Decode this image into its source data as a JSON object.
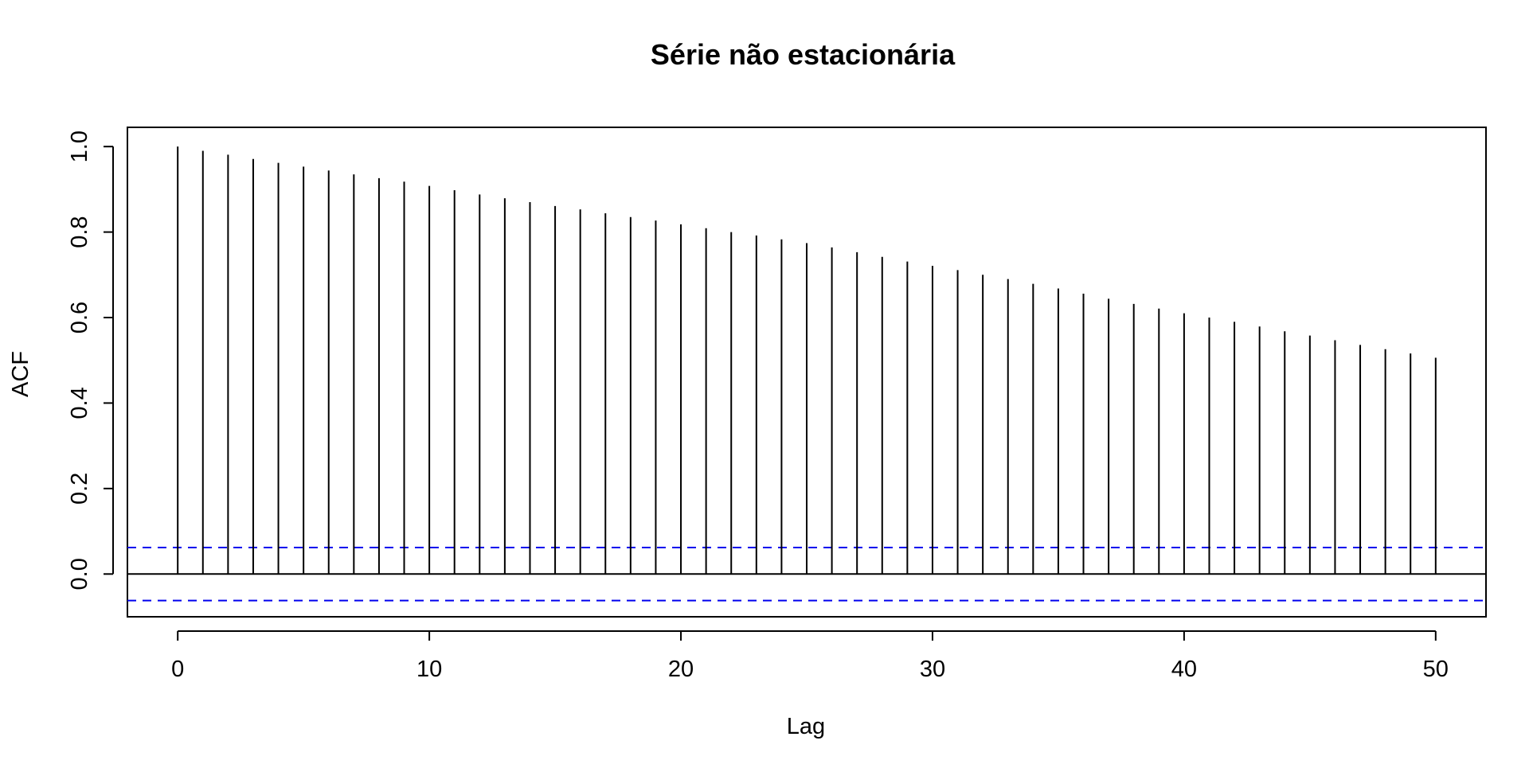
{
  "chart_data": {
    "type": "bar",
    "title": "Série não estacionária",
    "xlabel": "Lag",
    "ylabel": "ACF",
    "xlim": [
      -2,
      52
    ],
    "ylim": [
      -0.1,
      1.045
    ],
    "x_ticks": [
      0,
      10,
      20,
      30,
      40,
      50
    ],
    "y_ticks": [
      0.0,
      0.2,
      0.4,
      0.6,
      0.8,
      1.0
    ],
    "x_tick_labels": [
      "0",
      "10",
      "20",
      "30",
      "40",
      "50"
    ],
    "y_tick_labels": [
      "0.0",
      "0.2",
      "0.4",
      "0.6",
      "0.8",
      "1.0"
    ],
    "lags": [
      0,
      1,
      2,
      3,
      4,
      5,
      6,
      7,
      8,
      9,
      10,
      11,
      12,
      13,
      14,
      15,
      16,
      17,
      18,
      19,
      20,
      21,
      22,
      23,
      24,
      25,
      26,
      27,
      28,
      29,
      30,
      31,
      32,
      33,
      34,
      35,
      36,
      37,
      38,
      39,
      40,
      41,
      42,
      43,
      44,
      45,
      46,
      47,
      48,
      49,
      50
    ],
    "values": [
      1.0,
      0.99,
      0.981,
      0.971,
      0.962,
      0.953,
      0.944,
      0.935,
      0.926,
      0.918,
      0.908,
      0.898,
      0.888,
      0.879,
      0.87,
      0.861,
      0.853,
      0.844,
      0.835,
      0.827,
      0.818,
      0.809,
      0.8,
      0.792,
      0.783,
      0.774,
      0.764,
      0.753,
      0.742,
      0.731,
      0.721,
      0.711,
      0.7,
      0.69,
      0.679,
      0.668,
      0.656,
      0.644,
      0.632,
      0.621,
      0.61,
      0.6,
      0.59,
      0.579,
      0.568,
      0.558,
      0.547,
      0.536,
      0.526,
      0.516,
      0.506
    ],
    "confidence_bounds": [
      0.062,
      -0.062
    ],
    "colors": {
      "bars": "#000000",
      "confidence": "#0000ee",
      "frame": "#000000",
      "zero_line": "#000000"
    }
  }
}
